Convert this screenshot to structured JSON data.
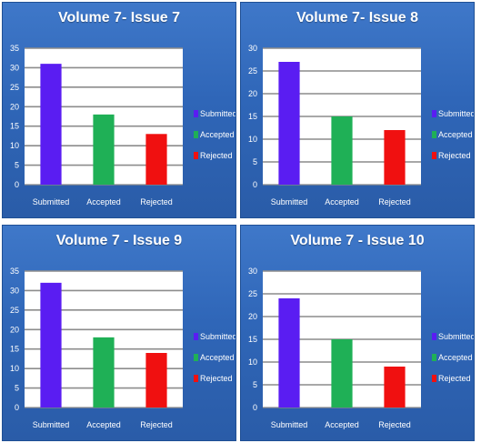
{
  "chart_data": [
    {
      "type": "bar",
      "title": "Volume 7- Issue 7",
      "categories": [
        "Submitted",
        "Accepted",
        "Rejected"
      ],
      "values": [
        31,
        18,
        13
      ],
      "ylim": [
        0,
        35
      ],
      "yticks": [
        "0",
        "5",
        "10",
        "15",
        "20",
        "25",
        "30",
        "35"
      ],
      "colors": [
        "#5a1df2",
        "#1fb056",
        "#f01010"
      ],
      "legend": [
        "Submitted",
        "Accepted",
        "Rejected"
      ],
      "legend_position": "right",
      "grid": true
    },
    {
      "type": "bar",
      "title": "Volume 7- Issue 8",
      "categories": [
        "Submitted",
        "Accepted",
        "Rejected"
      ],
      "values": [
        27,
        15,
        12
      ],
      "ylim": [
        0,
        30
      ],
      "yticks": [
        "0",
        "5",
        "10",
        "15",
        "20",
        "25",
        "30"
      ],
      "colors": [
        "#5a1df2",
        "#1fb056",
        "#f01010"
      ],
      "legend": [
        "Submitted",
        "Accepted",
        "Rejected"
      ],
      "legend_position": "right",
      "grid": true
    },
    {
      "type": "bar",
      "title": "Volume 7 - Issue 9",
      "categories": [
        "Submitted",
        "Accepted",
        "Rejected"
      ],
      "values": [
        32,
        18,
        14
      ],
      "ylim": [
        0,
        35
      ],
      "yticks": [
        "0",
        "5",
        "10",
        "15",
        "20",
        "25",
        "30",
        "35"
      ],
      "colors": [
        "#5a1df2",
        "#1fb056",
        "#f01010"
      ],
      "legend": [
        "Submitted",
        "Accepted",
        "Rejected"
      ],
      "legend_position": "right",
      "grid": true
    },
    {
      "type": "bar",
      "title": "Volume 7 - Issue 10",
      "categories": [
        "Submitted",
        "Accepted",
        "Rejected"
      ],
      "values": [
        24,
        15,
        9
      ],
      "ylim": [
        0,
        30
      ],
      "yticks": [
        "0",
        "5",
        "10",
        "15",
        "20",
        "25",
        "30"
      ],
      "colors": [
        "#5a1df2",
        "#1fb056",
        "#f01010"
      ],
      "legend": [
        "Submitted",
        "Accepted",
        "Rejected"
      ],
      "legend_position": "right",
      "grid": true
    }
  ]
}
